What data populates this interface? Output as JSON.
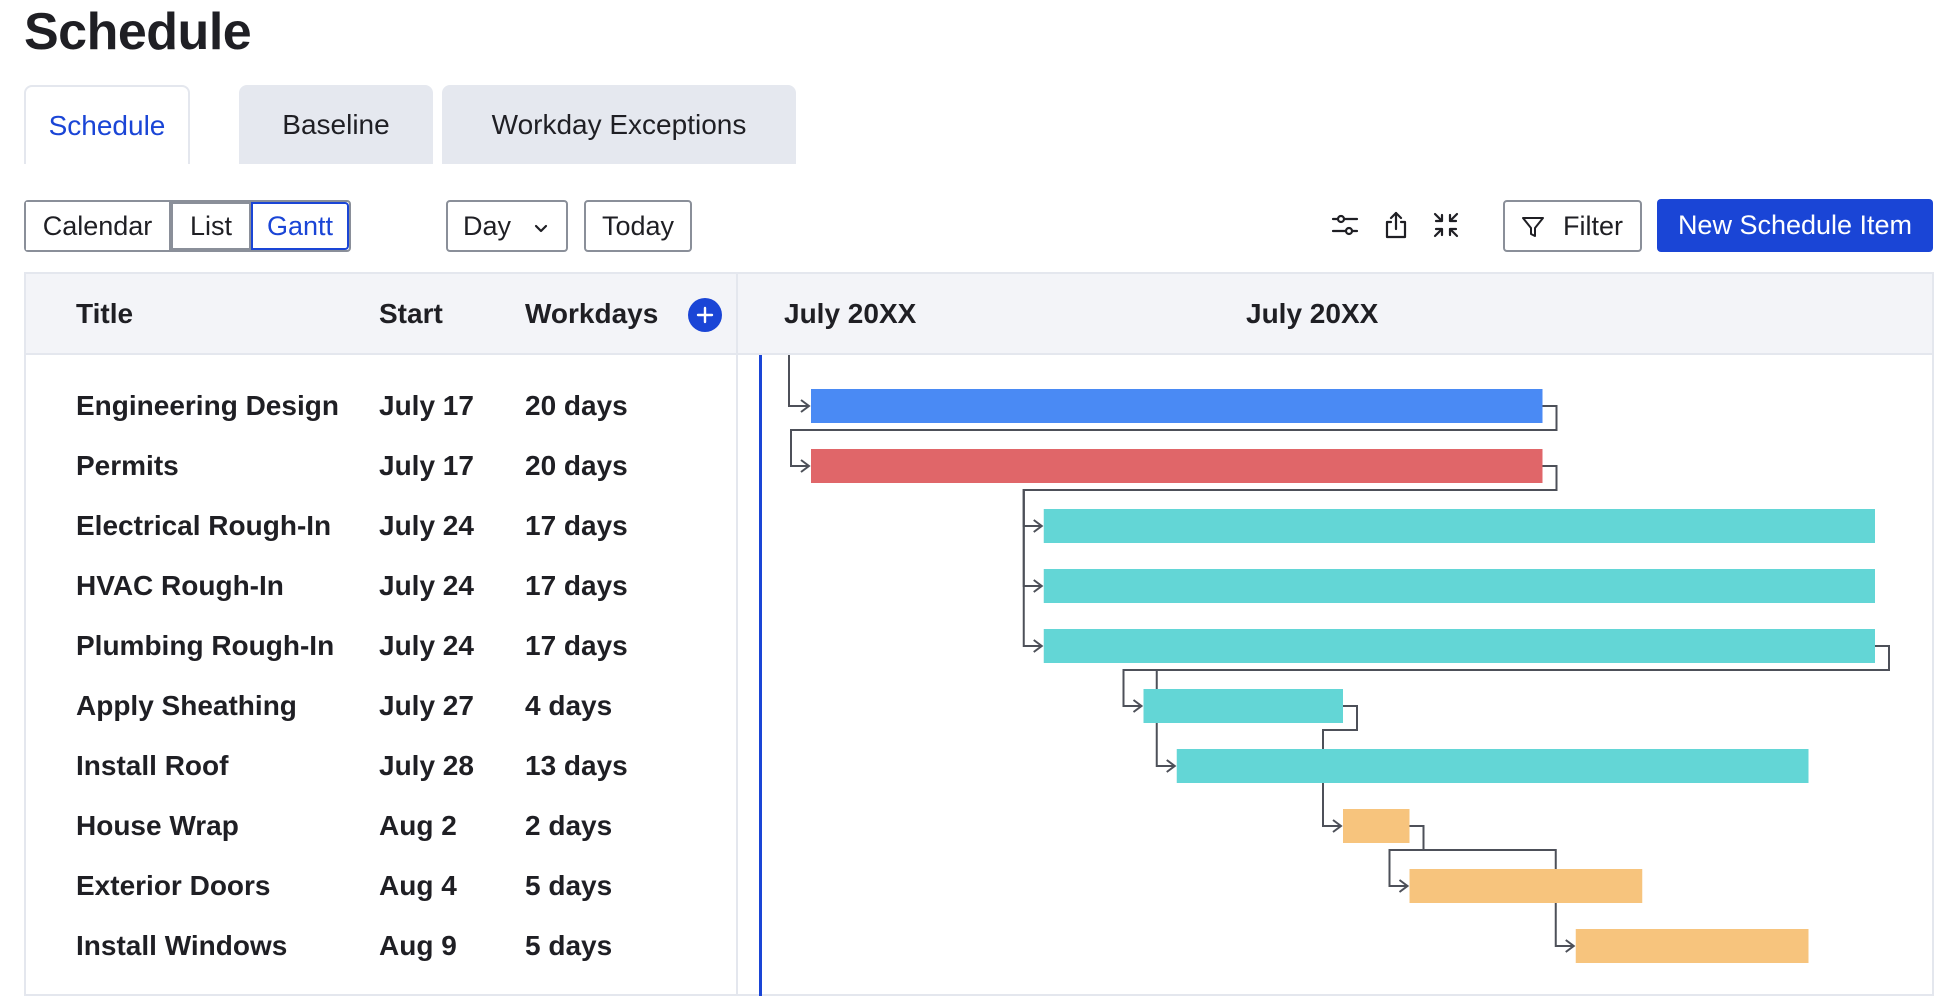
{
  "page": {
    "title": "Schedule"
  },
  "tabs": [
    {
      "label": "Schedule",
      "active": true
    },
    {
      "label": "Baseline",
      "active": false
    },
    {
      "label": "Workday Exceptions",
      "active": false
    }
  ],
  "toolbar": {
    "views": {
      "calendar": "Calendar",
      "list": "List",
      "gantt": "Gantt",
      "selected": "Gantt"
    },
    "zoom": {
      "selected": "Day"
    },
    "today_label": "Today",
    "icons": [
      "settings-sliders-icon",
      "share-icon",
      "collapse-icon"
    ],
    "filter_label": "Filter",
    "new_item_label": "New Schedule Item"
  },
  "columns": {
    "title": "Title",
    "start": "Start",
    "workdays": "Workdays"
  },
  "timeline": {
    "month_labels": [
      "July 20XX",
      "July 20XX"
    ]
  },
  "colors": {
    "accent": "#1a45d6",
    "bar_blue": "#4a8af4",
    "bar_red": "#e06669",
    "bar_teal": "#63d6d6",
    "bar_orange": "#f7c47d",
    "connector": "#4d5059"
  },
  "items": [
    {
      "title": "Engineering Design",
      "start": "July 17",
      "workdays": "20 days",
      "color": "bar_blue",
      "start_day": 0,
      "duration_days": 22
    },
    {
      "title": "Permits",
      "start": "July 17",
      "workdays": "20 days",
      "color": "bar_red",
      "start_day": 0,
      "duration_days": 22
    },
    {
      "title": "Electrical Rough-In",
      "start": "July 24",
      "workdays": "17 days",
      "color": "bar_teal",
      "start_day": 7,
      "duration_days": 25
    },
    {
      "title": "HVAC Rough-In",
      "start": "July 24",
      "workdays": "17 days",
      "color": "bar_teal",
      "start_day": 7,
      "duration_days": 25
    },
    {
      "title": "Plumbing Rough-In",
      "start": "July 24",
      "workdays": "17 days",
      "color": "bar_teal",
      "start_day": 7,
      "duration_days": 25
    },
    {
      "title": "Apply Sheathing",
      "start": "July 27",
      "workdays": "4 days",
      "color": "bar_teal",
      "start_day": 10,
      "duration_days": 6
    },
    {
      "title": "Install Roof",
      "start": "July 28",
      "workdays": "13 days",
      "color": "bar_teal",
      "start_day": 11,
      "duration_days": 19
    },
    {
      "title": "House Wrap",
      "start": "Aug 2",
      "workdays": "2 days",
      "color": "bar_orange",
      "start_day": 16,
      "duration_days": 2
    },
    {
      "title": "Exterior Doors",
      "start": "Aug 4",
      "workdays": "5 days",
      "color": "bar_orange",
      "start_day": 18,
      "duration_days": 7
    },
    {
      "title": "Install Windows",
      "start": "Aug 9",
      "workdays": "5 days",
      "color": "bar_orange",
      "start_day": 23,
      "duration_days": 7
    }
  ],
  "dependencies": [
    {
      "from": 0,
      "to": 1
    },
    {
      "from": 1,
      "to": 2
    },
    {
      "from": 1,
      "to": 3
    },
    {
      "from": 1,
      "to": 4
    },
    {
      "from": 4,
      "to": 5
    },
    {
      "from": 4,
      "to": 6
    },
    {
      "from": 5,
      "to": 7
    },
    {
      "from": 7,
      "to": 8
    },
    {
      "from": 7,
      "to": 9
    }
  ]
}
